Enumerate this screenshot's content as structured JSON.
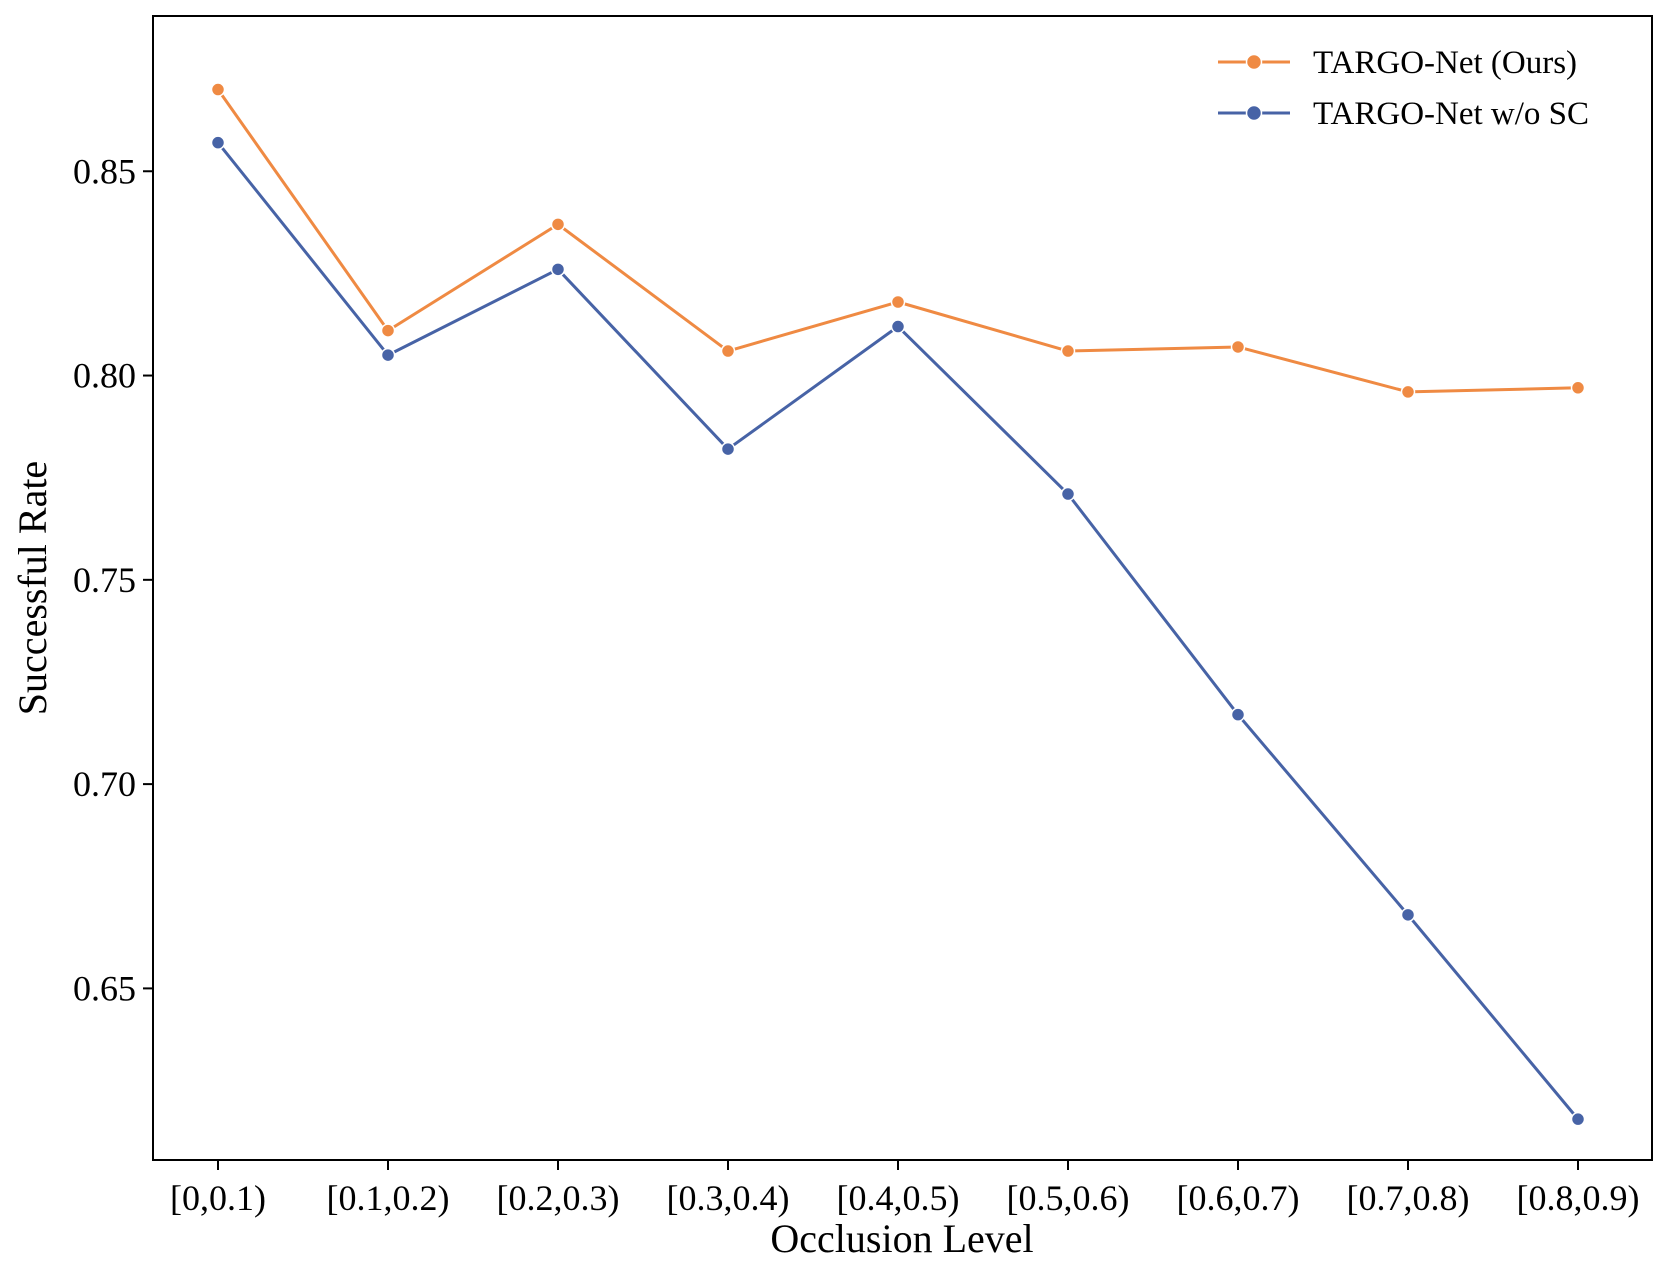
{
  "chart_data": {
    "type": "line",
    "title": "",
    "xlabel": "Occlusion Level",
    "ylabel": "Successful Rate",
    "categories": [
      "[0,0.1)",
      "[0.1,0.2)",
      "[0.2,0.3)",
      "[0.3,0.4)",
      "[0.4,0.5)",
      "[0.5,0.6)",
      "[0.6,0.7)",
      "[0.7,0.8)",
      "[0.8,0.9)"
    ],
    "yticks": [
      "0.65",
      "0.70",
      "0.75",
      "0.80",
      "0.85"
    ],
    "ytick_values": [
      0.65,
      0.7,
      0.75,
      0.8,
      0.85
    ],
    "ylim": [
      0.608,
      0.888
    ],
    "grid": false,
    "legend_position": "top-right",
    "series": [
      {
        "name": "TARGO-Net (Ours)",
        "color": "#ef8a43",
        "values": [
          0.87,
          0.811,
          0.837,
          0.806,
          0.818,
          0.806,
          0.807,
          0.796,
          0.797
        ]
      },
      {
        "name": "TARGO-Net w/o SC",
        "color": "#4763a6",
        "values": [
          0.857,
          0.805,
          0.826,
          0.782,
          0.812,
          0.771,
          0.717,
          0.668,
          0.618
        ]
      }
    ]
  }
}
